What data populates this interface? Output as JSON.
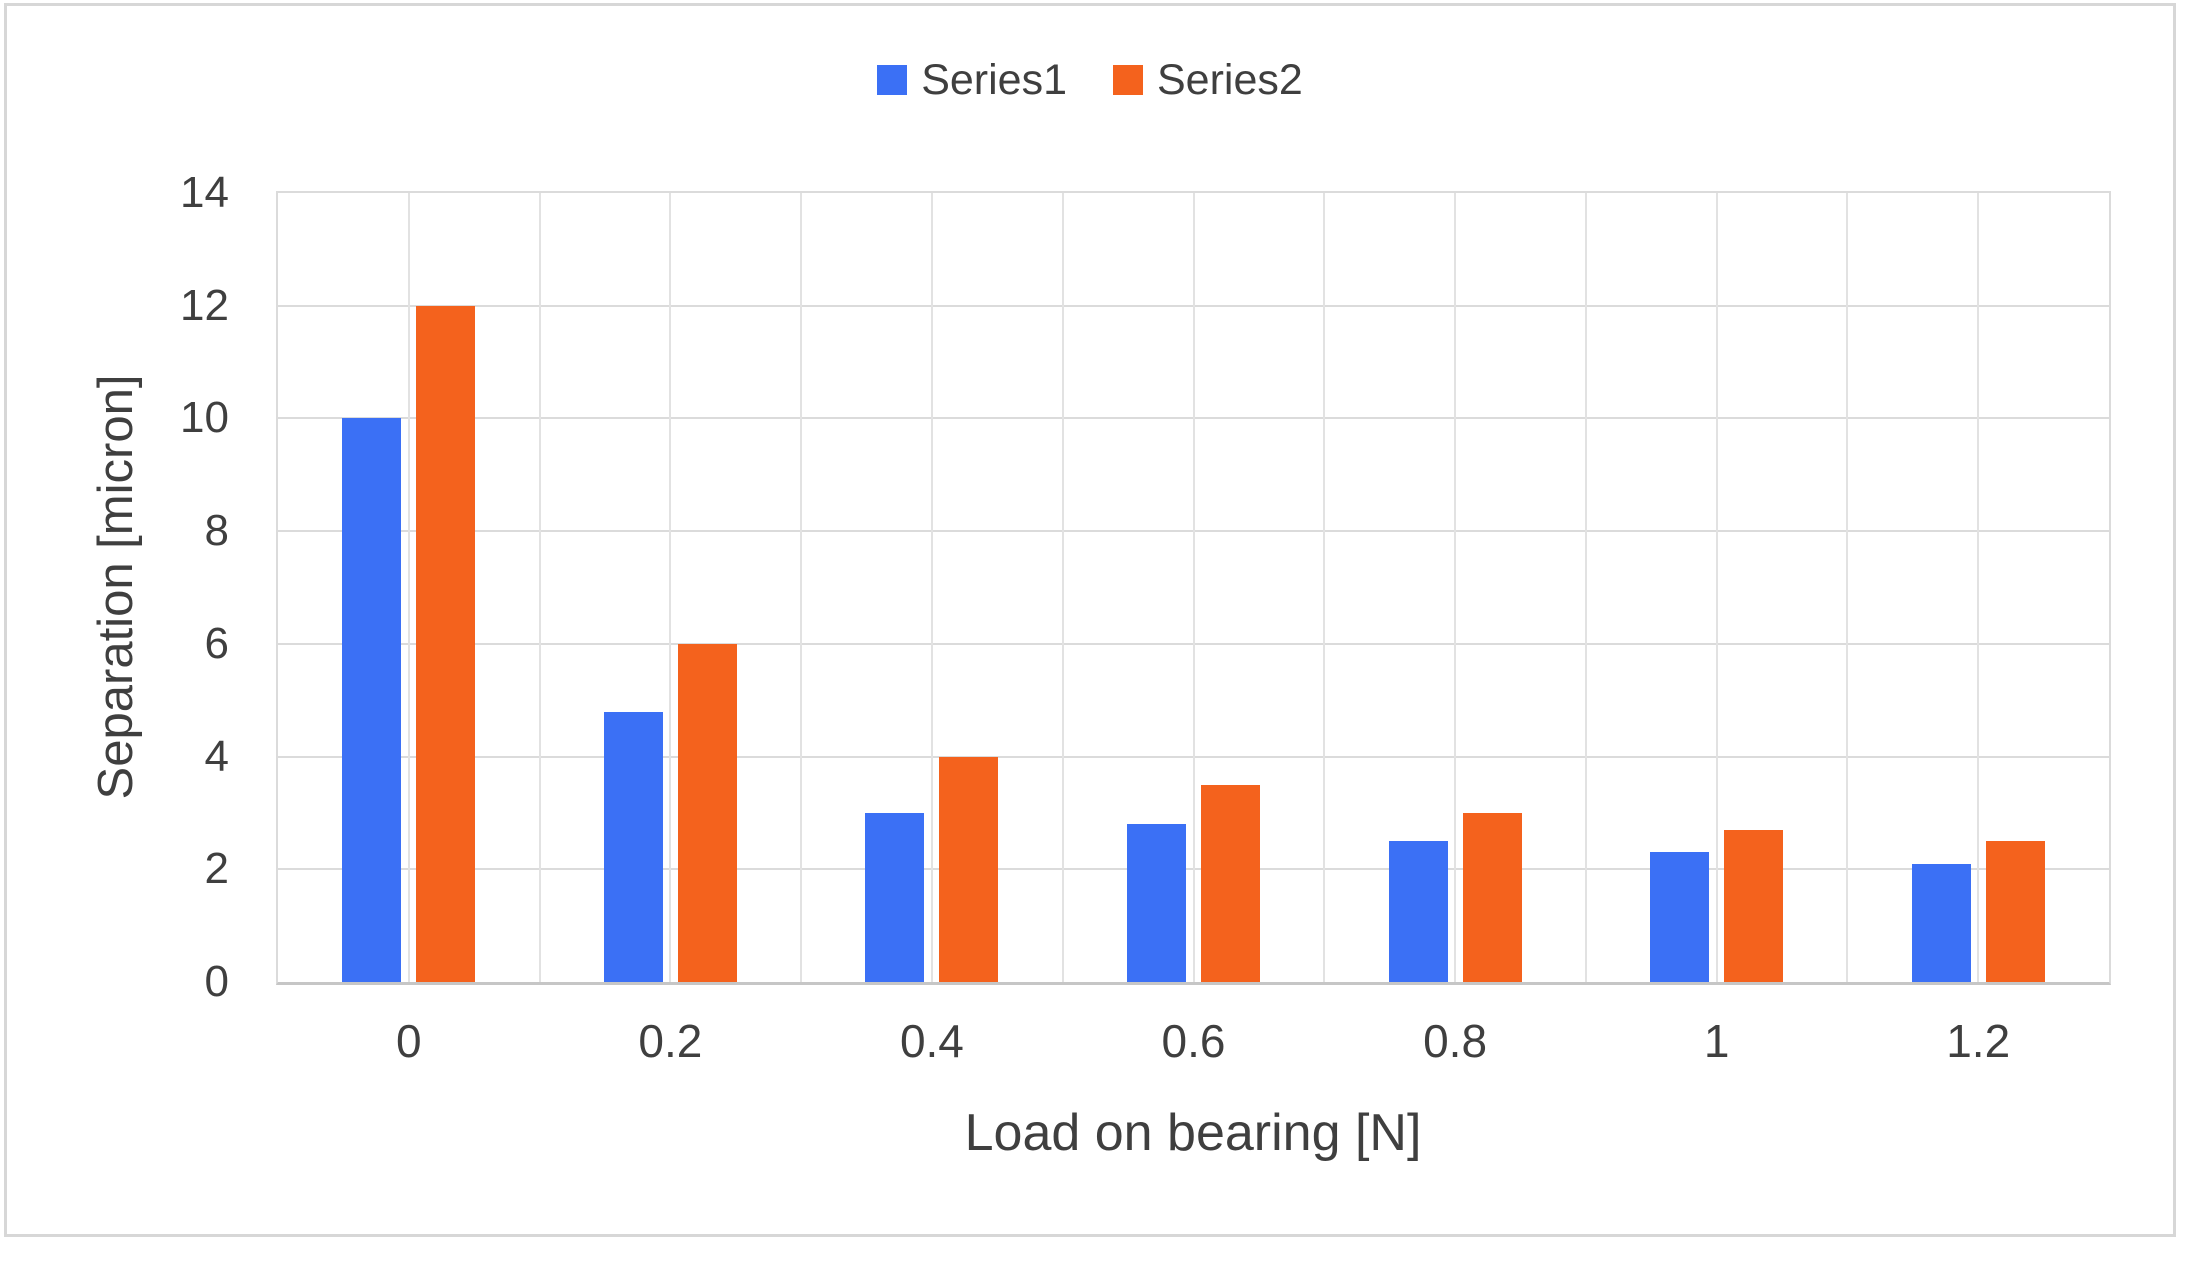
{
  "chart_data": {
    "type": "bar",
    "categories": [
      "0",
      "0.2",
      "0.4",
      "0.6",
      "0.8",
      "1",
      "1.2"
    ],
    "series": [
      {
        "name": "Series1",
        "color": "#3B70F5",
        "values": [
          10,
          4.8,
          3,
          2.8,
          2.5,
          2.3,
          2.1
        ]
      },
      {
        "name": "Series2",
        "color": "#F4621D",
        "values": [
          12,
          6,
          4,
          3.5,
          3,
          2.7,
          2.5
        ]
      }
    ],
    "title": "",
    "xlabel": "Load on bearing [N]",
    "ylabel": "Separation [micron]",
    "ylim": [
      0,
      14
    ],
    "ytick_step": 2,
    "yticks": [
      "0",
      "2",
      "4",
      "6",
      "8",
      "10",
      "12",
      "14"
    ],
    "grid": "horizontal major on, vertical half-category on",
    "legend_position": "top-center"
  },
  "colors": {
    "gridline": "#DBDBDB",
    "vertical_gridline": "#E2E2E2",
    "axis_line": "#C6C6C6",
    "frame_border": "#D7D7D7",
    "text": "#3F3F3F",
    "background": "#FFFFFF"
  }
}
